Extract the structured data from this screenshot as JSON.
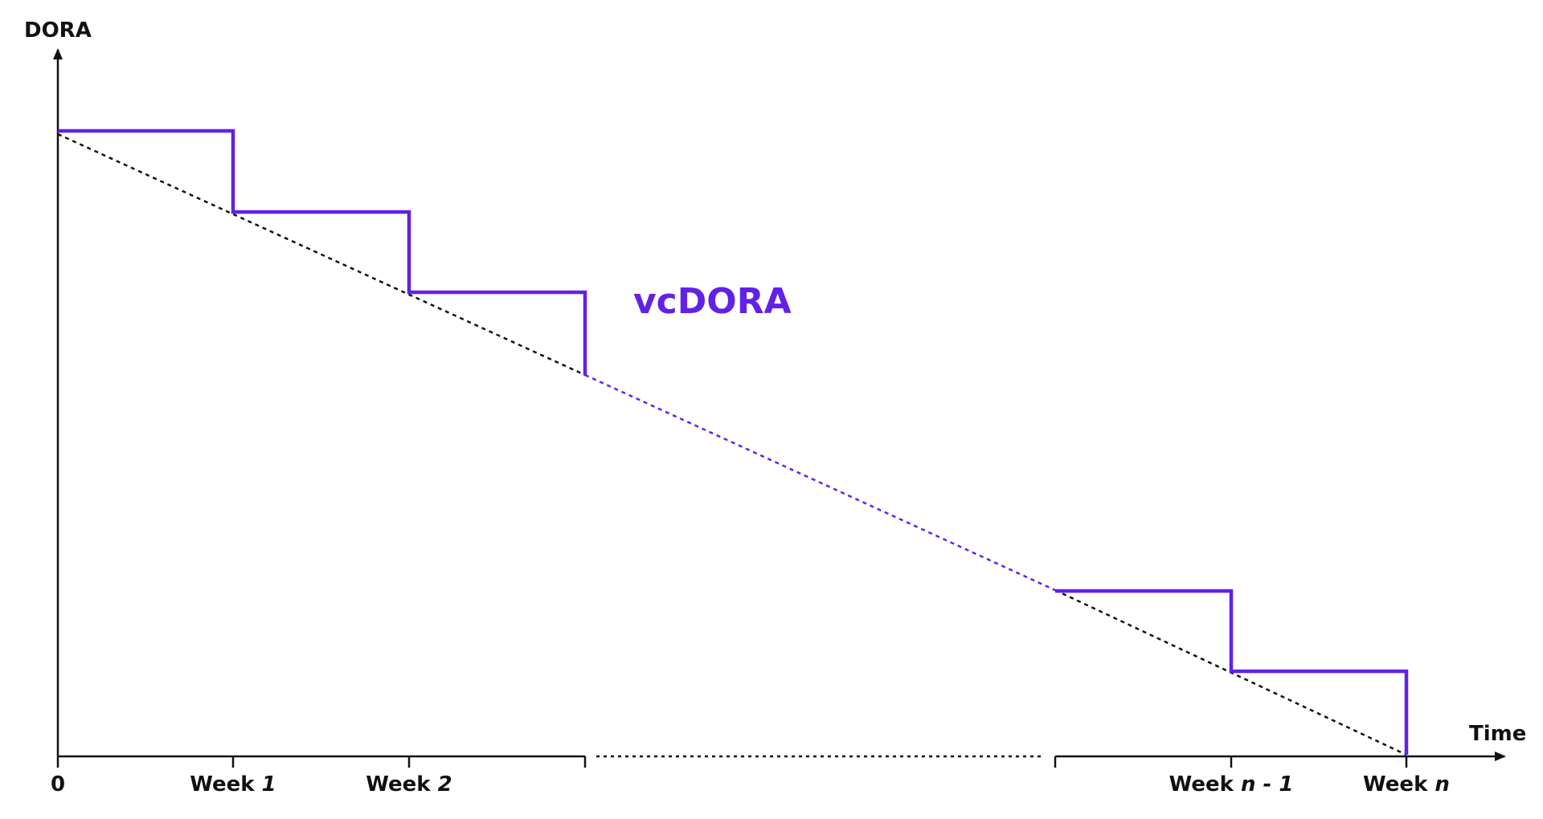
{
  "colors": {
    "accent": "#6221E6",
    "axis": "#111111",
    "trend": "#111111"
  },
  "labels": {
    "y_axis": "DORA",
    "x_axis": "Time",
    "series": "vcDORA"
  },
  "ticks": {
    "origin": "0",
    "week_prefix": "Week",
    "week1_num": "1",
    "week2_num": "2",
    "week_n_minus_1": "n - 1",
    "week_n": "n"
  }
}
